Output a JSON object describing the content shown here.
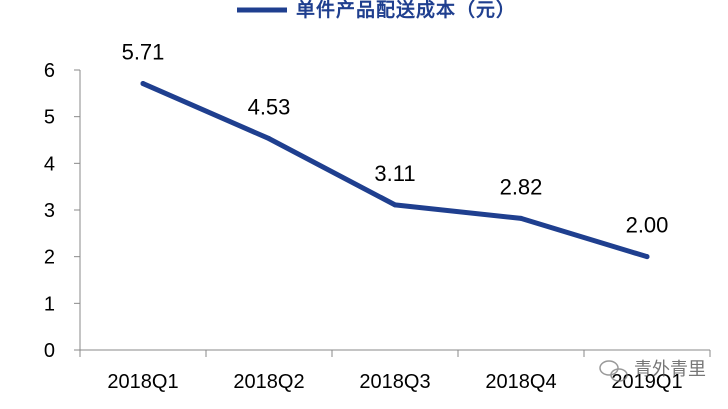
{
  "chart_data": {
    "type": "line",
    "categories": [
      "2018Q1",
      "2018Q2",
      "2018Q3",
      "2018Q4",
      "2019Q1"
    ],
    "series": [
      {
        "name": "单件产品配送成本（元）",
        "values": [
          5.71,
          4.53,
          3.11,
          2.82,
          2.0
        ],
        "color": "#1f3f8f"
      }
    ],
    "data_labels": [
      "5.71",
      "4.53",
      "3.11",
      "2.82",
      "2.00"
    ],
    "y_ticks": [
      "0",
      "1",
      "2",
      "3",
      "4",
      "5",
      "6"
    ],
    "ylim": [
      0,
      6
    ],
    "grid": false,
    "legend_position": "top"
  },
  "watermark": {
    "text": "青外青里",
    "icon": "wechat-icon"
  }
}
